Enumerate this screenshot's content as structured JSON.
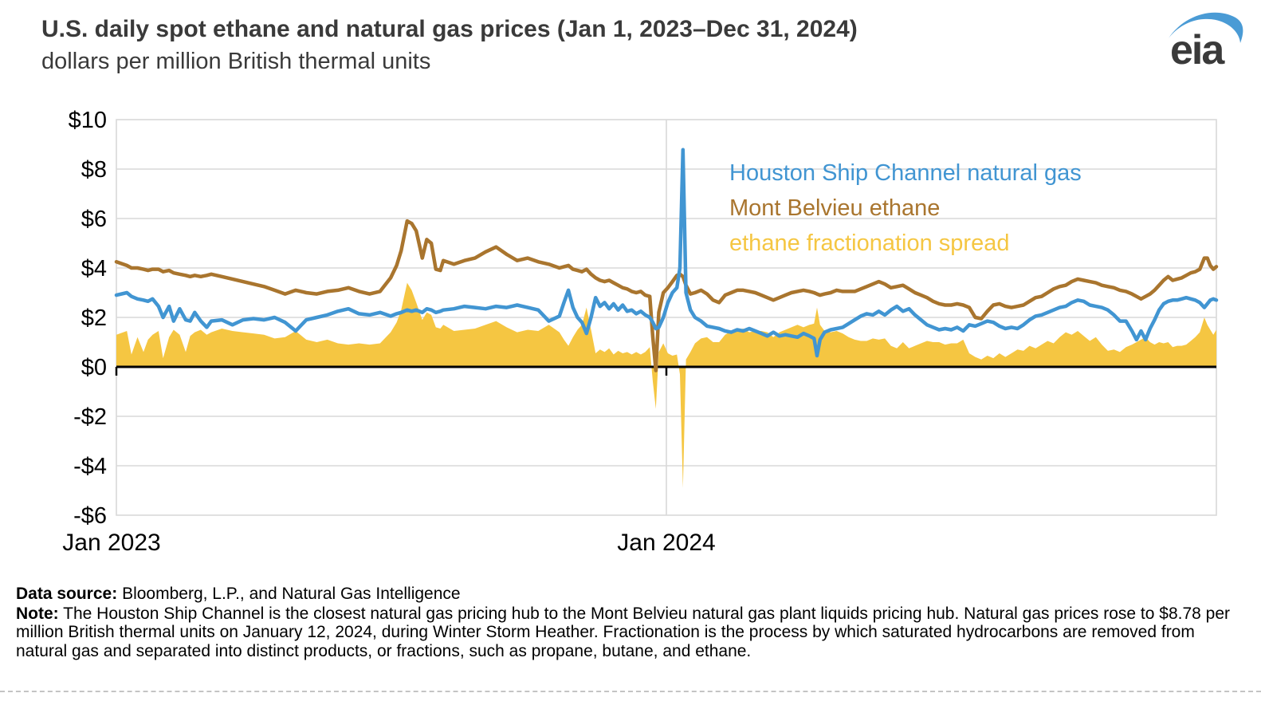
{
  "header": {
    "title": "U.S. daily spot ethane and natural gas prices (Jan 1, 2023–Dec 31, 2024)",
    "subtitle": "dollars per million British thermal units"
  },
  "logo": {
    "text": "eia"
  },
  "legend": {
    "items": [
      {
        "label": "Houston Ship Channel natural gas",
        "color": "#4195d2"
      },
      {
        "label": "Mont Belvieu ethane",
        "color": "#a9752e"
      },
      {
        "label": "ethane fractionation spread",
        "color": "#f5c642"
      }
    ]
  },
  "notes": {
    "source_label": "Data source:",
    "source_text": "Bloomberg, L.P., and Natural Gas Intelligence",
    "note_label": "Note:",
    "note_text": "The Houston Ship Channel is the closest natural gas pricing hub to the Mont Belvieu natural gas plant liquids pricing hub. Natural gas prices rose to $8.78 per million British thermal units on January 12, 2024, during Winter Storm Heather. Fractionation is the process by which saturated hydrocarbons are removed from natural gas and separated into distinct products, or fractions, such as propane, butane, and ethane."
  },
  "colors": {
    "grid": "#d9d9d9",
    "axis": "#000000",
    "title_text": "#3a3a3a",
    "logo_text": "#3a3a3a",
    "logo_swoosh": "#4a9bd5",
    "dashed_separator": "#c4c4c4"
  },
  "chart_data": {
    "type": "line",
    "title": "U.S. daily spot ethane and natural gas prices (Jan 1, 2023–Dec 31, 2024)",
    "xlabel": "",
    "ylabel": "dollars per million British thermal units",
    "ylim": [
      -6,
      10
    ],
    "y_tick_step": 2,
    "y_ticks": [
      "$10",
      "$8",
      "$6",
      "$4",
      "$2",
      "$0",
      "-$2",
      "-$4",
      "-$6"
    ],
    "x_range_days": [
      0,
      730
    ],
    "x_ticks": [
      {
        "day": 0,
        "label": "Jan 2023"
      },
      {
        "day": 365,
        "label": "Jan 2024"
      }
    ],
    "grid": true,
    "legend_position": "inside-top-right",
    "peak_event": {
      "day": 376,
      "value": 8.78
    },
    "days": [
      0,
      7,
      10,
      14,
      18,
      21,
      24,
      28,
      31,
      35,
      38,
      42,
      46,
      49,
      52,
      56,
      60,
      63,
      70,
      77,
      84,
      91,
      98,
      105,
      112,
      119,
      126,
      133,
      140,
      147,
      154,
      161,
      168,
      175,
      182,
      186,
      189,
      193,
      196,
      199,
      203,
      206,
      209,
      212,
      215,
      217,
      224,
      231,
      238,
      245,
      252,
      259,
      266,
      273,
      280,
      287,
      294,
      297,
      300,
      303,
      306,
      309,
      312,
      315,
      318,
      321,
      324,
      327,
      330,
      333,
      336,
      339,
      342,
      345,
      348,
      351,
      354,
      356,
      358,
      360,
      363,
      366,
      369,
      372,
      374,
      376,
      378,
      381,
      384,
      388,
      392,
      396,
      400,
      404,
      408,
      412,
      416,
      420,
      424,
      428,
      432,
      436,
      440,
      444,
      448,
      452,
      456,
      460,
      463,
      465,
      467,
      470,
      474,
      478,
      482,
      486,
      490,
      494,
      498,
      502,
      506,
      510,
      514,
      518,
      522,
      526,
      530,
      534,
      538,
      542,
      546,
      550,
      554,
      558,
      562,
      566,
      570,
      574,
      578,
      582,
      586,
      590,
      594,
      598,
      602,
      606,
      610,
      614,
      618,
      622,
      626,
      630,
      634,
      638,
      642,
      646,
      650,
      654,
      658,
      662,
      666,
      670,
      674,
      677,
      680,
      683,
      686,
      689,
      692,
      695,
      698,
      701,
      704,
      707,
      710,
      713,
      716,
      719,
      722,
      724,
      726,
      728,
      730
    ],
    "series": [
      {
        "name": "Houston Ship Channel natural gas",
        "type": "line",
        "color": "#4195d2",
        "values": [
          2.9,
          3.0,
          2.85,
          2.75,
          2.7,
          2.65,
          2.75,
          2.45,
          2.0,
          2.45,
          1.85,
          2.35,
          1.9,
          1.85,
          2.2,
          1.85,
          1.6,
          1.85,
          1.9,
          1.7,
          1.9,
          1.95,
          1.9,
          2.0,
          1.8,
          1.45,
          1.9,
          2.0,
          2.1,
          2.25,
          2.35,
          2.15,
          2.1,
          2.2,
          2.05,
          2.15,
          2.2,
          2.3,
          2.25,
          2.3,
          2.2,
          2.35,
          2.3,
          2.2,
          2.25,
          2.3,
          2.35,
          2.45,
          2.4,
          2.35,
          2.45,
          2.4,
          2.5,
          2.4,
          2.3,
          1.85,
          2.05,
          2.6,
          3.1,
          2.4,
          2.0,
          1.8,
          1.35,
          2.0,
          2.8,
          2.45,
          2.6,
          2.35,
          2.55,
          2.3,
          2.5,
          2.25,
          2.3,
          2.15,
          2.25,
          2.1,
          2.0,
          1.8,
          1.55,
          1.6,
          2.0,
          2.6,
          3.0,
          3.2,
          4.0,
          8.78,
          3.0,
          2.3,
          2.0,
          1.85,
          1.65,
          1.6,
          1.55,
          1.45,
          1.4,
          1.5,
          1.45,
          1.55,
          1.45,
          1.35,
          1.25,
          1.4,
          1.25,
          1.3,
          1.25,
          1.2,
          1.35,
          1.25,
          1.15,
          0.45,
          1.1,
          1.4,
          1.5,
          1.55,
          1.6,
          1.75,
          1.9,
          2.05,
          2.15,
          2.1,
          2.25,
          2.1,
          2.3,
          2.45,
          2.25,
          2.35,
          2.1,
          1.9,
          1.7,
          1.6,
          1.5,
          1.55,
          1.5,
          1.6,
          1.45,
          1.7,
          1.65,
          1.75,
          1.85,
          1.8,
          1.65,
          1.55,
          1.6,
          1.55,
          1.7,
          1.9,
          2.05,
          2.1,
          2.2,
          2.3,
          2.4,
          2.45,
          2.6,
          2.7,
          2.65,
          2.5,
          2.45,
          2.4,
          2.3,
          2.1,
          1.85,
          1.85,
          1.45,
          1.1,
          1.45,
          1.1,
          1.55,
          1.9,
          2.3,
          2.55,
          2.65,
          2.7,
          2.7,
          2.75,
          2.8,
          2.75,
          2.7,
          2.6,
          2.4,
          2.55,
          2.7,
          2.75,
          2.7
        ]
      },
      {
        "name": "Mont Belvieu ethane",
        "type": "line",
        "color": "#a9752e",
        "values": [
          4.25,
          4.1,
          4.0,
          4.0,
          3.95,
          3.9,
          3.95,
          3.95,
          3.85,
          3.9,
          3.8,
          3.75,
          3.7,
          3.65,
          3.7,
          3.65,
          3.7,
          3.75,
          3.65,
          3.55,
          3.45,
          3.35,
          3.25,
          3.1,
          2.95,
          3.1,
          3.0,
          2.95,
          3.05,
          3.1,
          3.2,
          3.05,
          2.95,
          3.05,
          3.6,
          4.1,
          4.7,
          5.9,
          5.8,
          5.5,
          4.4,
          5.15,
          5.0,
          3.95,
          3.9,
          4.3,
          4.15,
          4.3,
          4.4,
          4.65,
          4.85,
          4.55,
          4.3,
          4.4,
          4.25,
          4.15,
          4.0,
          4.05,
          4.1,
          3.95,
          3.9,
          3.85,
          3.95,
          3.75,
          3.6,
          3.5,
          3.45,
          3.5,
          3.4,
          3.3,
          3.2,
          3.15,
          3.05,
          3.0,
          3.05,
          2.9,
          2.85,
          1.2,
          -0.15,
          2.2,
          3.0,
          3.2,
          3.45,
          3.7,
          3.75,
          3.65,
          3.3,
          2.95,
          3.0,
          3.1,
          2.95,
          2.7,
          2.6,
          2.9,
          3.0,
          3.1,
          3.1,
          3.05,
          3.0,
          2.9,
          2.8,
          2.7,
          2.8,
          2.9,
          3.0,
          3.05,
          3.1,
          3.05,
          3.0,
          2.95,
          2.9,
          2.95,
          3.0,
          3.1,
          3.05,
          3.05,
          3.05,
          3.15,
          3.25,
          3.35,
          3.45,
          3.35,
          3.2,
          3.25,
          3.3,
          3.15,
          3.0,
          2.9,
          2.8,
          2.65,
          2.55,
          2.5,
          2.5,
          2.55,
          2.5,
          2.4,
          2.0,
          1.95,
          2.25,
          2.5,
          2.55,
          2.45,
          2.4,
          2.45,
          2.5,
          2.65,
          2.8,
          2.85,
          3.0,
          3.15,
          3.25,
          3.3,
          3.45,
          3.55,
          3.5,
          3.45,
          3.4,
          3.3,
          3.25,
          3.2,
          3.1,
          3.05,
          2.95,
          2.85,
          2.75,
          2.85,
          2.95,
          3.1,
          3.3,
          3.5,
          3.65,
          3.5,
          3.55,
          3.6,
          3.7,
          3.8,
          3.85,
          3.95,
          4.4,
          4.4,
          4.1,
          3.95,
          4.05
        ]
      },
      {
        "name": "ethane fractionation spread",
        "type": "area",
        "color": "#f5c642",
        "values": [
          1.3,
          1.45,
          0.5,
          1.2,
          0.6,
          1.1,
          1.3,
          1.45,
          0.35,
          1.2,
          1.5,
          1.3,
          0.6,
          1.25,
          1.4,
          1.5,
          1.3,
          1.4,
          1.55,
          1.45,
          1.4,
          1.35,
          1.3,
          1.15,
          1.2,
          1.45,
          1.1,
          1.0,
          1.1,
          0.95,
          0.9,
          0.95,
          0.9,
          0.95,
          1.4,
          1.8,
          2.3,
          3.4,
          3.1,
          2.6,
          1.9,
          2.2,
          2.1,
          1.6,
          1.55,
          1.7,
          1.45,
          1.5,
          1.55,
          1.7,
          1.85,
          1.6,
          1.4,
          1.5,
          1.45,
          1.7,
          1.4,
          1.1,
          0.85,
          1.2,
          1.5,
          1.7,
          2.4,
          1.5,
          0.55,
          0.7,
          0.6,
          0.75,
          0.5,
          0.65,
          0.55,
          0.6,
          0.5,
          0.6,
          0.5,
          0.6,
          0.8,
          -0.6,
          -1.7,
          0.6,
          0.95,
          0.55,
          0.45,
          0.5,
          -0.3,
          -4.9,
          0.3,
          0.6,
          0.95,
          1.15,
          1.2,
          1.0,
          1.0,
          1.3,
          1.45,
          1.5,
          1.55,
          1.4,
          1.45,
          1.45,
          1.4,
          1.2,
          1.4,
          1.5,
          1.6,
          1.7,
          1.6,
          1.7,
          1.75,
          2.4,
          1.7,
          1.45,
          1.4,
          1.45,
          1.35,
          1.2,
          1.1,
          1.05,
          1.05,
          1.15,
          1.1,
          1.15,
          0.85,
          0.75,
          1.0,
          0.75,
          0.85,
          0.95,
          1.05,
          1.0,
          1.0,
          0.9,
          0.95,
          0.95,
          1.1,
          0.55,
          0.4,
          0.3,
          0.45,
          0.35,
          0.55,
          0.4,
          0.55,
          0.7,
          0.65,
          0.85,
          0.75,
          0.9,
          1.05,
          0.95,
          1.2,
          1.4,
          1.3,
          1.45,
          1.25,
          1.05,
          1.2,
          0.9,
          0.65,
          0.7,
          0.6,
          0.8,
          0.9,
          1.0,
          1.1,
          1.2,
          1.0,
          0.9,
          1.0,
          0.95,
          1.0,
          0.8,
          0.85,
          0.85,
          0.9,
          1.05,
          1.2,
          1.4,
          2.0,
          1.7,
          1.5,
          1.3,
          1.5
        ]
      }
    ]
  }
}
